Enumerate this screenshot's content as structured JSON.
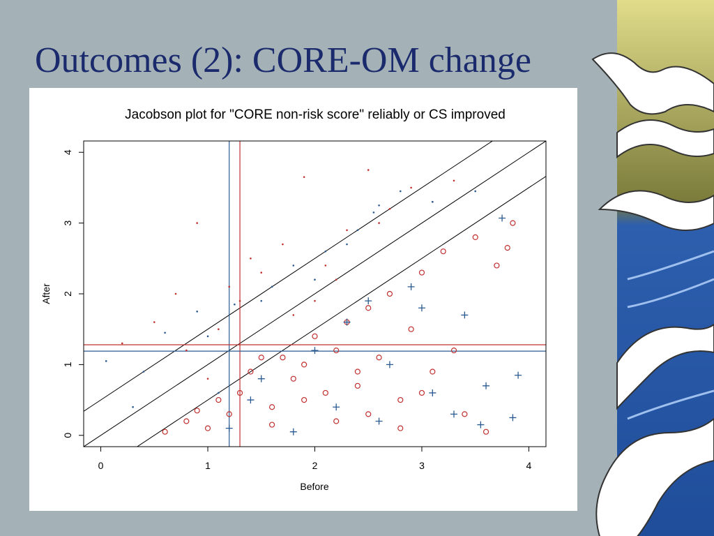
{
  "slide_title": "Outcomes (2): CORE-OM change",
  "chart_data": {
    "type": "scatter",
    "title": "Jacobson plot for \"CORE non-risk score\" reliably or CS improved",
    "x_label": "Before",
    "y_label": "After",
    "xlim": [
      -0.16,
      4.16
    ],
    "ylim": [
      -0.16,
      4.16
    ],
    "xticks": [
      0,
      1,
      2,
      3,
      4
    ],
    "yticks": [
      0,
      1,
      2,
      3,
      4
    ],
    "vlines": [
      {
        "value": 1.2,
        "color": "#2a5a90"
      },
      {
        "value": 1.3,
        "color": "#c0302f"
      }
    ],
    "hlines": [
      {
        "value": 1.28,
        "color": "#c0302f"
      },
      {
        "value": 1.19,
        "color": "#2a5a90"
      }
    ],
    "diagonals": [
      {
        "slope": 1,
        "intercept": 0.5
      },
      {
        "slope": 1,
        "intercept": 0
      },
      {
        "slope": 1,
        "intercept": -0.5
      }
    ],
    "series": [
      {
        "color": "#c0302f",
        "marker": "circle",
        "x": [
          0.6,
          0.8,
          0.9,
          1.0,
          1.1,
          1.2,
          1.3,
          1.4,
          1.5,
          1.6,
          1.7,
          1.8,
          1.9,
          2.0,
          2.1,
          2.2,
          2.3,
          2.4,
          2.5,
          2.6,
          2.7,
          2.8,
          2.9,
          3.0,
          3.1,
          3.2,
          3.3,
          3.4,
          3.5,
          3.6,
          3.7,
          3.8,
          3.85,
          2.2,
          2.5,
          1.9,
          2.8,
          3.0,
          1.6,
          2.4
        ],
        "values": [
          0.05,
          0.2,
          0.35,
          0.1,
          0.5,
          0.3,
          0.6,
          0.9,
          1.1,
          0.4,
          1.1,
          0.8,
          1.0,
          1.4,
          0.6,
          1.2,
          1.6,
          0.9,
          1.8,
          1.1,
          2.0,
          0.5,
          1.5,
          2.3,
          0.9,
          2.6,
          1.2,
          0.3,
          2.8,
          0.05,
          2.4,
          2.65,
          3.0,
          0.2,
          0.3,
          0.5,
          0.1,
          0.6,
          0.15,
          0.7
        ]
      },
      {
        "color": "#2a5a90",
        "marker": "cross",
        "x": [
          1.2,
          1.5,
          1.8,
          2.0,
          2.3,
          2.6,
          2.9,
          3.1,
          3.4,
          3.6,
          3.75,
          3.85,
          2.2,
          2.7,
          3.3,
          1.4,
          3.0,
          3.55,
          3.9,
          2.5
        ],
        "values": [
          0.1,
          0.8,
          0.05,
          1.2,
          1.6,
          0.2,
          2.1,
          0.6,
          1.7,
          0.7,
          3.07,
          0.25,
          0.4,
          1.0,
          0.3,
          0.5,
          1.8,
          0.15,
          0.85,
          1.9
        ]
      },
      {
        "color": "#c0302f",
        "marker": "dot",
        "x": [
          0.2,
          0.5,
          0.7,
          0.9,
          1.0,
          1.1,
          1.3,
          1.5,
          1.7,
          1.9,
          2.1,
          2.3,
          2.5,
          2.7,
          2.9,
          3.1,
          0.8,
          1.2,
          2.0,
          2.6,
          1.8,
          2.2,
          3.3,
          1.4
        ],
        "values": [
          1.3,
          1.6,
          2.0,
          3.0,
          0.8,
          1.5,
          1.9,
          2.3,
          2.7,
          3.65,
          2.4,
          2.9,
          3.75,
          3.2,
          3.5,
          3.3,
          1.2,
          2.1,
          1.9,
          3.0,
          1.7,
          2.2,
          3.6,
          2.5
        ]
      },
      {
        "color": "#2a5a90",
        "marker": "dot",
        "x": [
          0.05,
          0.3,
          0.6,
          0.9,
          1.1,
          1.25,
          1.5,
          1.8,
          2.1,
          2.4,
          2.6,
          2.8,
          3.1,
          3.5,
          1.6,
          2.3,
          0.4,
          1.0,
          2.0,
          2.55
        ],
        "values": [
          1.05,
          0.4,
          1.45,
          1.75,
          0.6,
          1.85,
          1.9,
          2.4,
          2.6,
          2.9,
          3.25,
          3.45,
          3.3,
          3.45,
          2.1,
          2.7,
          0.9,
          1.4,
          2.2,
          3.15
        ]
      }
    ]
  }
}
